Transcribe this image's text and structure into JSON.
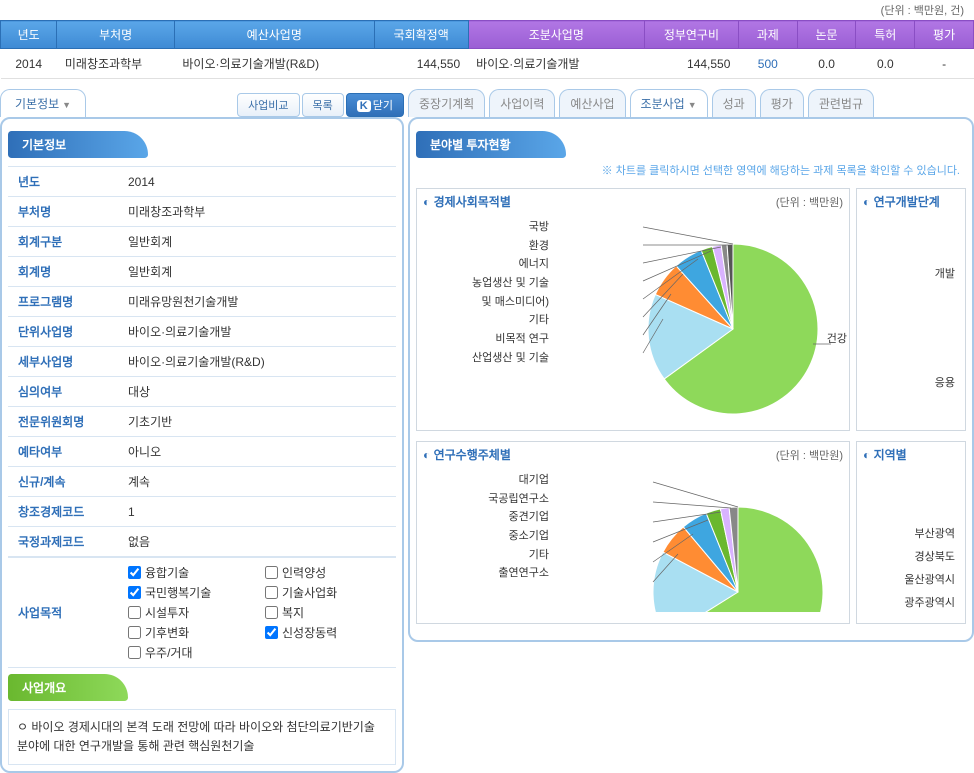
{
  "unit_text": "(단위 : 백만원, 건)",
  "header": {
    "cols": [
      "년도",
      "부처명",
      "예산사업명",
      "국회확정액",
      "조분사업명",
      "정부연구비",
      "과제",
      "논문",
      "특허",
      "평가"
    ],
    "row": {
      "year": "2014",
      "dept": "미래창조과학부",
      "budget_proj": "바이오·의료기술개발(R&D)",
      "confirmed": "144,550",
      "detail_proj": "바이오·의료기술개발",
      "gov_rnd": "144,550",
      "tasks": "500",
      "papers": "0.0",
      "patents": "0.0",
      "eval": "-"
    }
  },
  "left_tabs": {
    "active": "기본정보"
  },
  "left_actions": {
    "compare": "사업비교",
    "list": "목록",
    "close": "닫기"
  },
  "basic_info": {
    "title": "기본정보",
    "rows": [
      {
        "label": "년도",
        "value": "2014"
      },
      {
        "label": "부처명",
        "value": "미래창조과학부"
      },
      {
        "label": "회계구분",
        "value": "일반회계"
      },
      {
        "label": "회계명",
        "value": "일반회계"
      },
      {
        "label": "프로그램명",
        "value": "미래유망원천기술개발"
      },
      {
        "label": "단위사업명",
        "value": "바이오·의료기술개발"
      },
      {
        "label": "세부사업명",
        "value": "바이오·의료기술개발(R&D)"
      },
      {
        "label": "심의여부",
        "value": "대상"
      },
      {
        "label": "전문위원회명",
        "value": "기초기반"
      },
      {
        "label": "예타여부",
        "value": "아니오"
      },
      {
        "label": "신규/계속",
        "value": "계속"
      },
      {
        "label": "창조경제코드",
        "value": "1"
      },
      {
        "label": "국정과제코드",
        "value": "없음"
      }
    ],
    "purpose_label": "사업목적",
    "checkboxes": [
      {
        "label": "융합기술",
        "checked": true
      },
      {
        "label": "인력양성",
        "checked": false
      },
      {
        "label": "국민행복기술",
        "checked": true
      },
      {
        "label": "기술사업화",
        "checked": false
      },
      {
        "label": "시설투자",
        "checked": false
      },
      {
        "label": "복지",
        "checked": false
      },
      {
        "label": "기후변화",
        "checked": false
      },
      {
        "label": "신성장동력",
        "checked": true
      },
      {
        "label": "우주/거대",
        "checked": false
      }
    ]
  },
  "overview": {
    "title": "사업개요",
    "text": "ㅇ 바이오 경제시대의 본격 도래 전망에 따라 바이오와 첨단의료기반기술 분야에 대한 연구개발을 통해 관련 핵심원천기술"
  },
  "right_tabs": [
    "중장기계획",
    "사업이력",
    "예산사업",
    "조분사업",
    "성과",
    "평가",
    "관련법규"
  ],
  "right_active": "조분사업",
  "invest": {
    "title": "분야별 투자현황",
    "note": "※ 차트를 클릭하시면 선택한 영역에 해당하는 과제 목록을 확인할 수 있습니다."
  },
  "chart1": {
    "title": "경제사회목적별",
    "unit": "(단위 : 백만원)",
    "labels": [
      "국방",
      "환경",
      "에너지",
      "농업생산 및 기술",
      "및 매스미디어)",
      "기타",
      "비목적 연구",
      "산업생산 및 기술"
    ],
    "big_label": "건강",
    "slices": [
      {
        "color": "#8ed95a",
        "start": 0,
        "end": 234
      },
      {
        "color": "#a9dff2",
        "start": 234,
        "end": 294
      },
      {
        "color": "#ff8c33",
        "start": 294,
        "end": 318
      },
      {
        "color": "#3ea6e0",
        "start": 318,
        "end": 338
      },
      {
        "color": "#6ab82f",
        "start": 338,
        "end": 346
      },
      {
        "color": "#d9b3ff",
        "start": 346,
        "end": 352
      },
      {
        "color": "#888",
        "start": 352,
        "end": 356
      },
      {
        "color": "#555",
        "start": 356,
        "end": 360
      }
    ]
  },
  "side1": {
    "title": "연구개발단계",
    "labels": [
      "개발",
      "응용"
    ]
  },
  "chart2": {
    "title": "연구수행주체별",
    "unit": "(단위 : 백만원)",
    "labels": [
      "대기업",
      "국공립연구소",
      "중견기업",
      "중소기업",
      "기타",
      "출연연구소"
    ],
    "slices": [
      {
        "color": "#8ed95a",
        "start": 0,
        "end": 238
      },
      {
        "color": "#a9dff2",
        "start": 238,
        "end": 298
      },
      {
        "color": "#ff8c33",
        "start": 298,
        "end": 320
      },
      {
        "color": "#3ea6e0",
        "start": 320,
        "end": 338
      },
      {
        "color": "#6ab82f",
        "start": 338,
        "end": 348
      },
      {
        "color": "#d9b3ff",
        "start": 348,
        "end": 354
      },
      {
        "color": "#888",
        "start": 354,
        "end": 360
      }
    ]
  },
  "side2": {
    "title": "지역별",
    "labels": [
      "부산광역",
      "경상북도",
      "울산광역시",
      "광주광역시"
    ]
  }
}
